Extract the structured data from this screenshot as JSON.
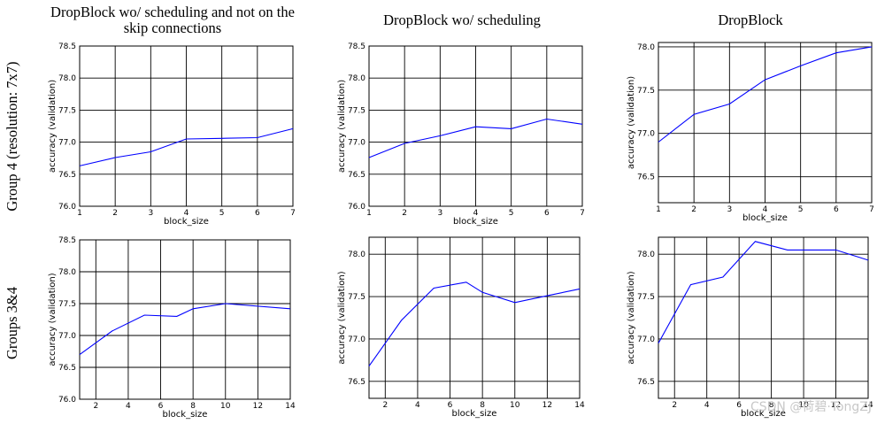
{
  "column_titles": [
    "DropBlock wo/ scheduling and not on the",
    "skip connections",
    "DropBlock wo/ scheduling",
    "DropBlock"
  ],
  "row_labels": [
    "Group 4 (resolution: 7x7)",
    "Groups 3&4"
  ],
  "watermark": "CSDN @荷碧·TongZJ",
  "colors": {
    "line": "#0000ff",
    "axes": "#000000",
    "grid": "#000000",
    "background": "#ffffff"
  },
  "chart_data": [
    {
      "type": "line",
      "title": "DropBlock wo/ scheduling and not on the skip connections",
      "row": "Group 4 (resolution: 7x7)",
      "xlabel": "block_size",
      "ylabel": "accuracy (validation)",
      "xlim": [
        1,
        7
      ],
      "ylim": [
        76.0,
        78.5
      ],
      "xticks": [
        "1",
        "2",
        "3",
        "4",
        "5",
        "6",
        "7"
      ],
      "yticks": [
        "76.0",
        "76.5",
        "77.0",
        "77.5",
        "78.0",
        "78.5"
      ],
      "x": [
        1,
        2,
        3,
        4,
        5,
        6,
        7
      ],
      "y": [
        76.63,
        76.76,
        76.85,
        77.05,
        77.06,
        77.07,
        77.21
      ]
    },
    {
      "type": "line",
      "title": "DropBlock wo/ scheduling",
      "row": "Group 4 (resolution: 7x7)",
      "xlabel": "block_size",
      "ylabel": "accuracy (validation)",
      "xlim": [
        1,
        7
      ],
      "ylim": [
        76.0,
        78.5
      ],
      "xticks": [
        "1",
        "2",
        "3",
        "4",
        "5",
        "6",
        "7"
      ],
      "yticks": [
        "76.0",
        "76.5",
        "77.0",
        "77.5",
        "78.0",
        "78.5"
      ],
      "x": [
        1,
        2,
        3,
        4,
        5,
        6,
        7
      ],
      "y": [
        76.76,
        76.98,
        77.1,
        77.24,
        77.21,
        77.36,
        77.28
      ]
    },
    {
      "type": "line",
      "title": "DropBlock",
      "row": "Group 4 (resolution: 7x7)",
      "xlabel": "block_size",
      "ylabel": "accuracy (validation)",
      "xlim": [
        1,
        7
      ],
      "ylim": [
        76.2,
        78.05
      ],
      "xticks": [
        "1",
        "2",
        "3",
        "4",
        "5",
        "6",
        "7"
      ],
      "yticks": [
        "76.5",
        "77.0",
        "77.5",
        "78.0"
      ],
      "x": [
        1,
        2,
        3,
        4,
        5,
        6,
        7
      ],
      "y": [
        76.9,
        77.22,
        77.34,
        77.62,
        77.78,
        77.93,
        78.0
      ]
    },
    {
      "type": "line",
      "title": "DropBlock wo/ scheduling and not on the skip connections",
      "row": "Groups 3&4",
      "xlabel": "block_size",
      "ylabel": "accuracy (validation)",
      "xlim": [
        1,
        14
      ],
      "ylim": [
        76.0,
        78.5
      ],
      "xticks": [
        "2",
        "4",
        "6",
        "8",
        "10",
        "12",
        "14"
      ],
      "yticks": [
        "76.0",
        "76.5",
        "77.0",
        "77.5",
        "78.0",
        "78.5"
      ],
      "x": [
        1,
        3,
        5,
        7,
        8,
        10,
        14
      ],
      "y": [
        76.7,
        77.07,
        77.32,
        77.3,
        77.42,
        77.5,
        77.42
      ]
    },
    {
      "type": "line",
      "title": "DropBlock wo/ scheduling",
      "row": "Groups 3&4",
      "xlabel": "block_size",
      "ylabel": "accuracy (validation)",
      "xlim": [
        1,
        14
      ],
      "ylim": [
        76.3,
        78.2
      ],
      "xticks": [
        "2",
        "4",
        "6",
        "8",
        "10",
        "12",
        "14"
      ],
      "yticks": [
        "76.5",
        "77.0",
        "77.5",
        "78.0"
      ],
      "x": [
        1,
        3,
        5,
        7,
        8,
        10,
        12,
        14
      ],
      "y": [
        76.68,
        77.22,
        77.6,
        77.67,
        77.55,
        77.43,
        77.51,
        77.59
      ]
    },
    {
      "type": "line",
      "title": "DropBlock",
      "row": "Groups 3&4",
      "xlabel": "block_size",
      "ylabel": "accuracy (validation)",
      "xlim": [
        1,
        14
      ],
      "ylim": [
        76.3,
        78.2
      ],
      "xticks": [
        "2",
        "4",
        "6",
        "8",
        "10",
        "12",
        "14"
      ],
      "yticks": [
        "76.5",
        "77.0",
        "77.5",
        "78.0"
      ],
      "x": [
        1,
        3,
        5,
        7,
        9,
        12,
        14
      ],
      "y": [
        76.95,
        77.64,
        77.73,
        78.15,
        78.05,
        78.05,
        77.93
      ]
    }
  ]
}
